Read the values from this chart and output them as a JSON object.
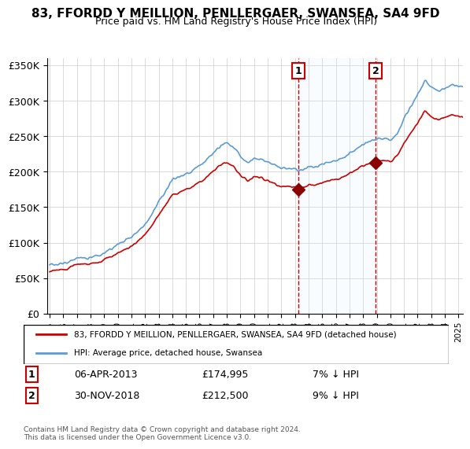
{
  "title": "83, FFORDD Y MEILLION, PENLLERGAER, SWANSEA, SA4 9FD",
  "subtitle": "Price paid vs. HM Land Registry's House Price Index (HPI)",
  "legend_line1": "83, FFORDD Y MEILLION, PENLLERGAER, SWANSEA, SA4 9FD (detached house)",
  "legend_line2": "HPI: Average price, detached house, Swansea",
  "sale1_date_label": "06-APR-2013",
  "sale1_price_label": "£174,995",
  "sale1_hpi_label": "7% ↓ HPI",
  "sale2_date_label": "30-NOV-2018",
  "sale2_price_label": "£212,500",
  "sale2_hpi_label": "9% ↓ HPI",
  "footer": "Contains HM Land Registry data © Crown copyright and database right 2024.\nThis data is licensed under the Open Government Licence v3.0.",
  "sale1_year": 2013.27,
  "sale1_price": 174995,
  "sale2_year": 2018.92,
  "sale2_price": 212500,
  "hpi_color": "#5b9bd5",
  "price_color": "#cc0000",
  "shade_color": "#ddeeff",
  "dashed_color": "#cc0000",
  "ylim": [
    0,
    360000
  ],
  "yticks": [
    0,
    50000,
    100000,
    150000,
    200000,
    250000,
    300000,
    350000
  ],
  "ytick_labels": [
    "£0",
    "£50K",
    "£100K",
    "£150K",
    "£200K",
    "£250K",
    "£300K",
    "£350K"
  ],
  "xstart": 1995,
  "xend": 2025
}
